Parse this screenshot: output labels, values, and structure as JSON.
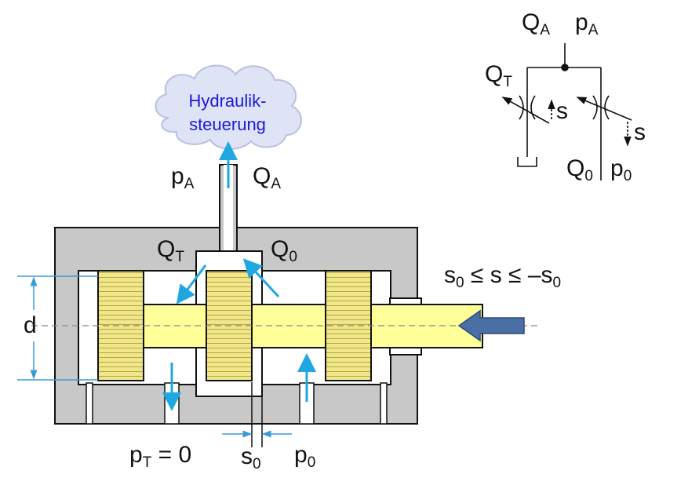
{
  "cloud": {
    "line1": "Hydraulik-",
    "line2": "steuerung"
  },
  "labels": {
    "pA_main": {
      "base": "p",
      "sub": "A"
    },
    "QA_main": {
      "base": "Q",
      "sub": "A"
    },
    "QT_main": {
      "base": "Q",
      "sub": "T"
    },
    "Q0_main": {
      "base": "Q",
      "sub": "0"
    },
    "d": "d",
    "pT_main": {
      "base": "p",
      "sub": "T",
      "suffix": " = 0"
    },
    "s0_main": {
      "base": "s",
      "sub": "0"
    },
    "p0_main": {
      "base": "p",
      "sub": "0"
    },
    "range": {
      "s_a": "s",
      "sub_a": "0",
      "mid": " ≤ s ≤ –s",
      "sub_b": "0"
    }
  },
  "symbol": {
    "QA": {
      "base": "Q",
      "sub": "A"
    },
    "pA": {
      "base": "p",
      "sub": "A"
    },
    "QT": {
      "base": "Q",
      "sub": "T"
    },
    "s1": "s",
    "s2": "s",
    "Q0": {
      "base": "Q",
      "sub": "0"
    },
    "p0": {
      "base": "p",
      "sub": "0"
    }
  },
  "colors": {
    "housing": "#c8c8c8",
    "spool": "#ffff99",
    "land": "#f0e68c",
    "flow_arrow": "#1fa8e0",
    "cloud_fill": "#dfe3f6",
    "push_arrow": "#4a6fa5",
    "dim_line": "#3a9ad9"
  }
}
